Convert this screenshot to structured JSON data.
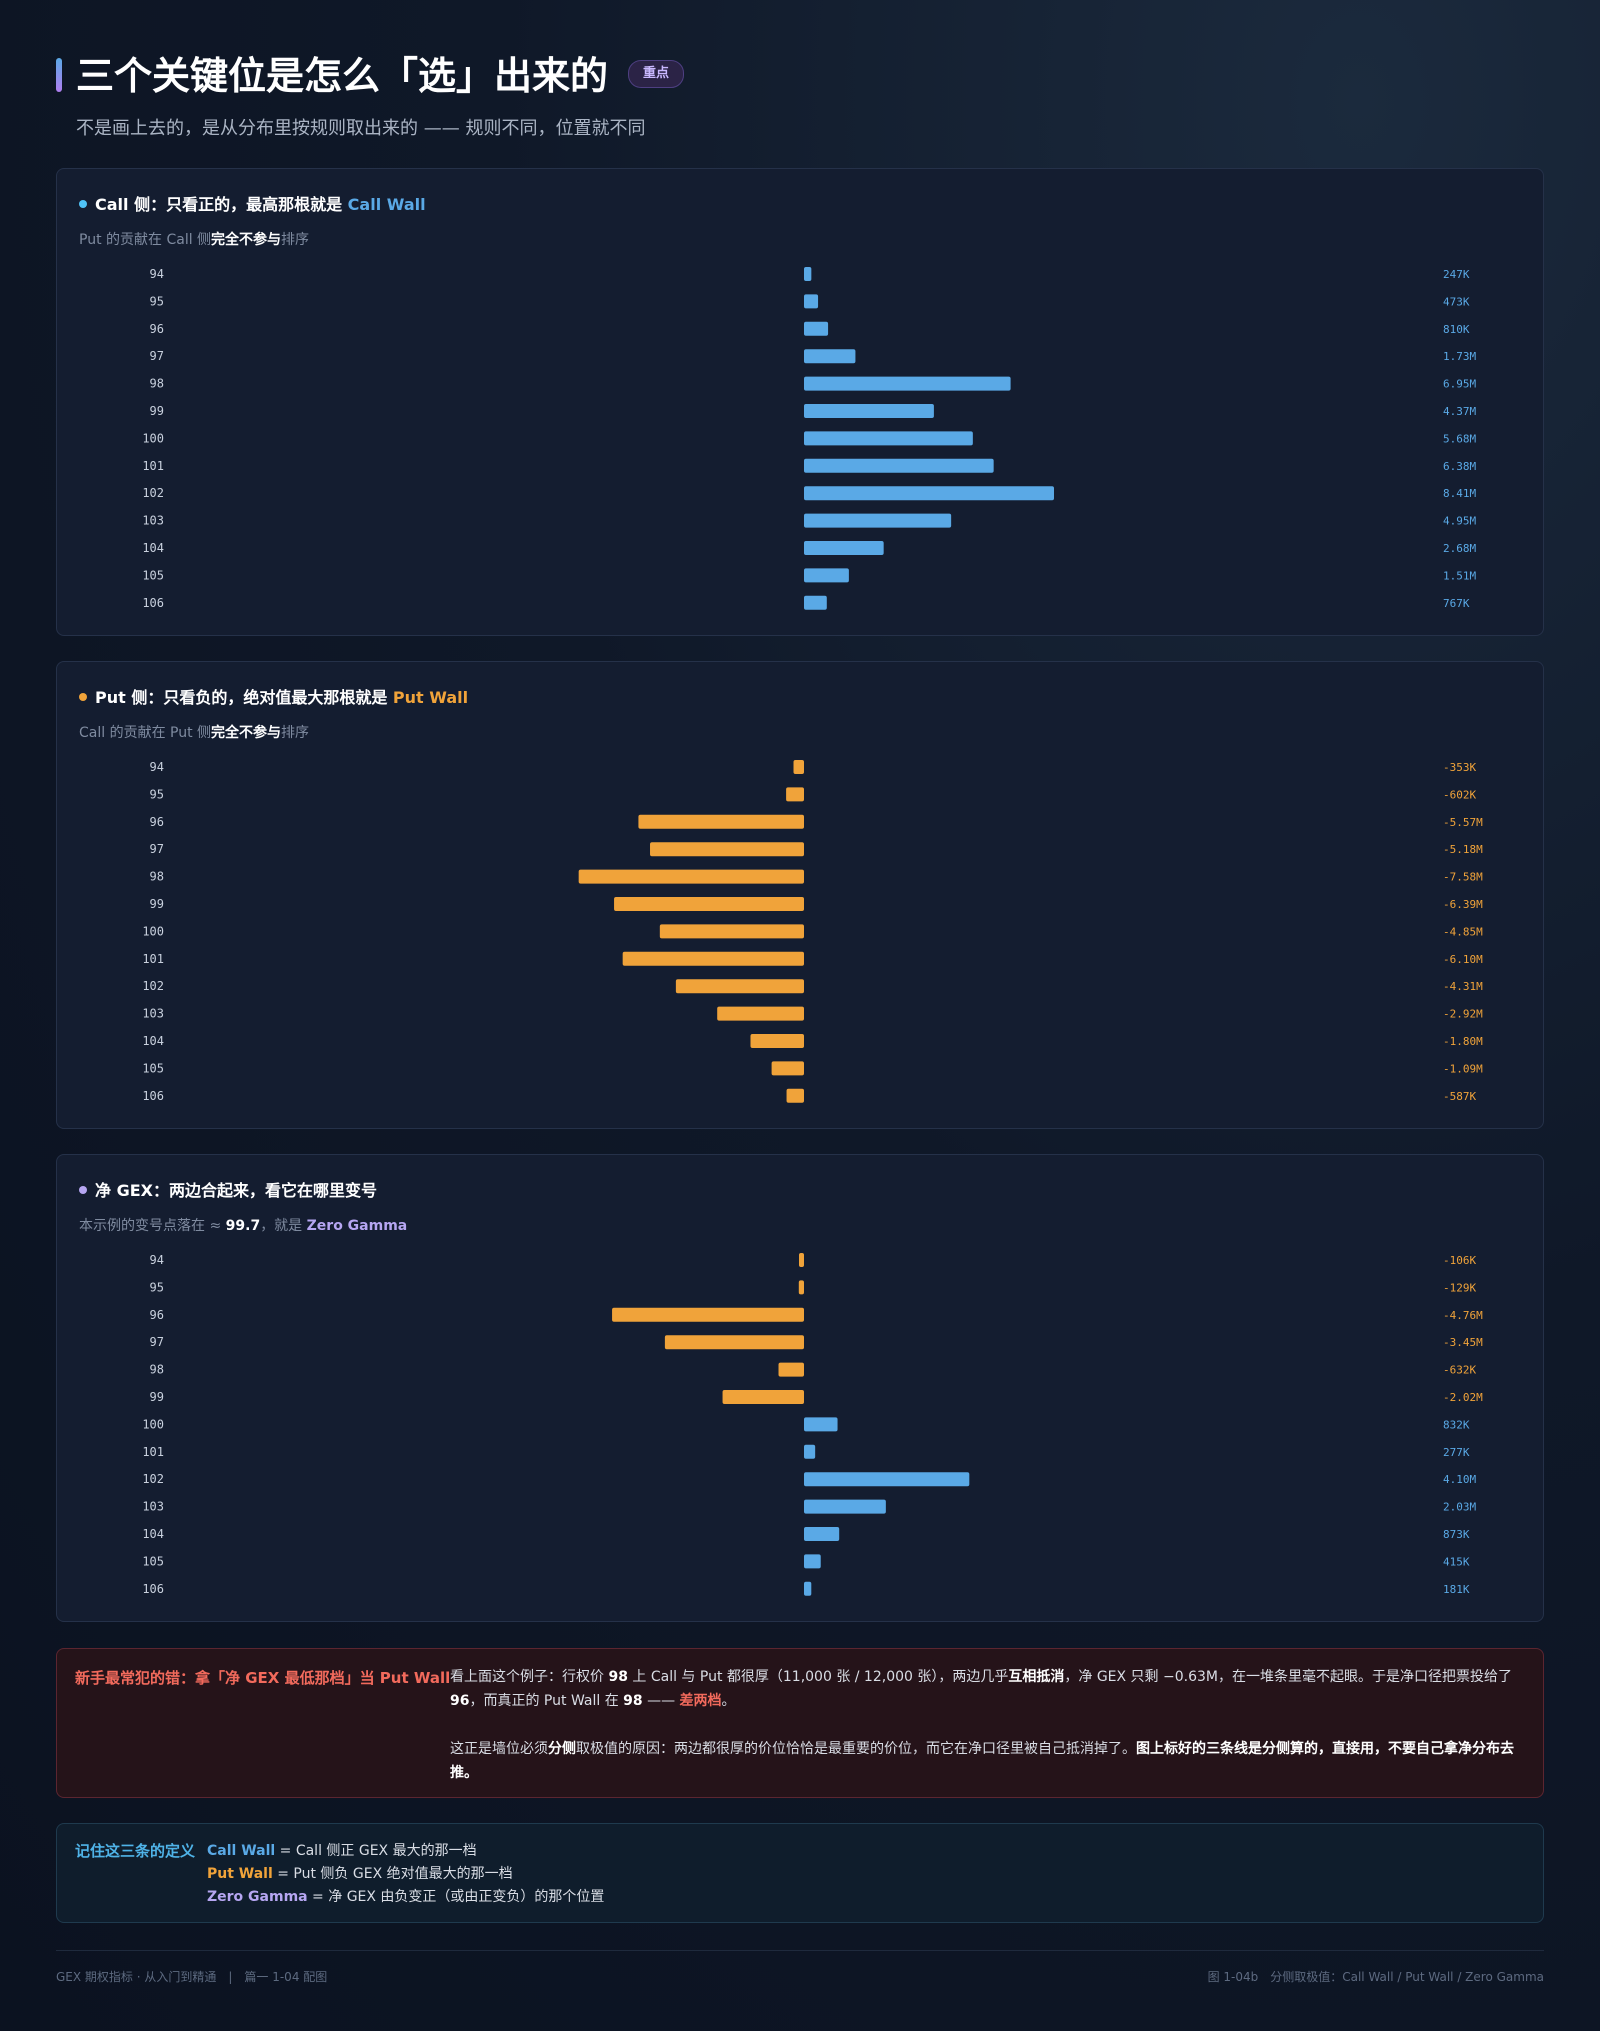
{
  "header": {
    "title": "三个关键位是怎么「选」出来的",
    "badge": "重点",
    "subtitle": "不是画上去的，是从分布里按规则取出来的 —— 规则不同，位置就不同"
  },
  "panels": [
    {
      "title_prefix": "Call 侧：只看正的，最高那根就是",
      "title_highlight": "Call Wall",
      "sub_prefix": "Put 的贡献在 Call 侧",
      "sub_bold": "完全不参与",
      "sub_suffix": "排序"
    },
    {
      "title_prefix": "Put 侧：只看负的，绝对值最大那根就是",
      "title_highlight": "Put Wall",
      "sub_prefix": "Call 的贡献在 Put 侧",
      "sub_bold": "完全不参与",
      "sub_suffix": "排序"
    },
    {
      "title_prefix": "净 GEX：两边合起来，看它在哪里变号",
      "title_highlight": "",
      "sub_prefix": "本示例的变号点落在 ≈",
      "sub_bold": "99.7",
      "sub_suffix": "，就是",
      "sub_highlight": "Zero Gamma"
    }
  ],
  "colors": {
    "call": "#5aa9e6",
    "put": "#f0a33a",
    "zero": "#b6a6f2",
    "warn": "#f26a5c"
  },
  "chart_data": [
    {
      "type": "bar",
      "orientation": "horizontal",
      "categories": [
        "94",
        "95",
        "96",
        "97",
        "98",
        "99",
        "100",
        "101",
        "102",
        "103",
        "104",
        "105",
        "106"
      ],
      "values": [
        0.247,
        0.473,
        0.81,
        1.73,
        6.95,
        4.37,
        5.68,
        6.38,
        8.41,
        4.95,
        2.68,
        1.51,
        0.767
      ],
      "value_unit": "M",
      "value_labels": [
        "247K",
        "473K",
        "810K",
        "1.73M",
        "6.95M",
        "4.37M",
        "5.68M",
        "6.38M",
        "8.41M",
        "4.95M",
        "2.68M",
        "1.51M",
        "767K"
      ],
      "xlim": [
        -8.41,
        8.41
      ]
    },
    {
      "type": "bar",
      "orientation": "horizontal",
      "categories": [
        "94",
        "95",
        "96",
        "97",
        "98",
        "99",
        "100",
        "101",
        "102",
        "103",
        "104",
        "105",
        "106"
      ],
      "values": [
        -0.353,
        -0.602,
        -5.57,
        -5.18,
        -7.58,
        -6.39,
        -4.85,
        -6.1,
        -4.31,
        -2.92,
        -1.8,
        -1.09,
        -0.587
      ],
      "value_unit": "M",
      "value_labels": [
        "-353K",
        "-602K",
        "-5.57M",
        "-5.18M",
        "-7.58M",
        "-6.39M",
        "-4.85M",
        "-6.10M",
        "-4.31M",
        "-2.92M",
        "-1.80M",
        "-1.09M",
        "-587K"
      ],
      "xlim": [
        -8.41,
        8.41
      ]
    },
    {
      "type": "bar",
      "orientation": "horizontal",
      "categories": [
        "94",
        "95",
        "96",
        "97",
        "98",
        "99",
        "100",
        "101",
        "102",
        "103",
        "104",
        "105",
        "106"
      ],
      "values": [
        -0.106,
        -0.129,
        -4.76,
        -3.45,
        -0.632,
        -2.02,
        0.832,
        0.277,
        4.1,
        2.03,
        0.873,
        0.415,
        0.181
      ],
      "value_unit": "M",
      "value_labels": [
        "-106K",
        "-129K",
        "-4.76M",
        "-3.45M",
        "-632K",
        "-2.02M",
        "832K",
        "277K",
        "4.10M",
        "2.03M",
        "873K",
        "415K",
        "181K"
      ],
      "xlim": [
        -6.2,
        6.2
      ]
    }
  ],
  "warning": {
    "label": "新手最常犯的错：拿「净 GEX 最低那档」当 Put Wall",
    "p1_a": "看上面这个例子：行权价",
    "p1_b": "98",
    "p1_c": "上 Call 与 Put 都很厚（11,000 张 / 12,000 张），两边几乎",
    "p1_d": "互相抵消",
    "p1_e": "，净 GEX 只剩 −0.63M，在一堆条里毫不起眼。于是净口径把票投给了",
    "p1_f": "96",
    "p1_g": "，而真正的 Put Wall 在",
    "p1_h": "98",
    "p1_i": "——",
    "p1_j": "差两档",
    "p1_k": "。",
    "p2_a": "这正是墙位必须",
    "p2_b": "分侧",
    "p2_c": "取极值的原因：两边都很厚的价位恰恰是最重要的价位，而它在净口径里被自己抵消掉了。",
    "p2_d": "图上标好的三条线是分侧算的，直接用，不要自己拿净分布去推。"
  },
  "definitions": {
    "label": "记住这三条的定义",
    "rows": [
      {
        "term": "Call Wall",
        "desc": " = Call 侧正 GEX 最大的那一档"
      },
      {
        "term": "Put Wall",
        "desc": " = Put 侧负 GEX 绝对值最大的那一档"
      },
      {
        "term": "Zero Gamma",
        "desc": " = 净 GEX 由负变正（或由正变负）的那个位置"
      }
    ]
  },
  "footer": {
    "left": "GEX 期权指标 · 从入门到精通　|　篇一 1-04 配图",
    "right": "图 1-04b　分侧取极值：Call Wall / Put Wall / Zero Gamma"
  }
}
